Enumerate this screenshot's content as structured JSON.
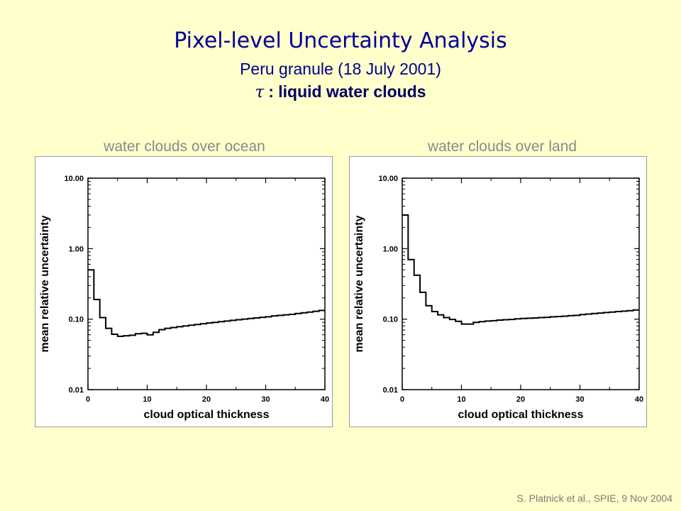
{
  "header": {
    "title": "Pixel-level Uncertainty Analysis",
    "subtitle": "Peru granule (18 July 2001)",
    "subtitle2_symbol": "τ",
    "subtitle2_text": ": liquid water clouds"
  },
  "panels": {
    "left_label": "water clouds over ocean",
    "right_label": "water clouds over land"
  },
  "footer": "S. Platnick et al., SPIE, 9 Nov 2004",
  "colors": {
    "background": "#ffffcc",
    "title": "#000099",
    "line": "#000000"
  },
  "chart_data": [
    {
      "type": "line",
      "step": true,
      "title": "",
      "xlabel": "cloud optical thickness",
      "ylabel": "mean relative uncertainty",
      "xlim": [
        0,
        40
      ],
      "ylim": [
        0.01,
        10
      ],
      "yscale": "log",
      "xticks": [
        0,
        10,
        20,
        30,
        40
      ],
      "xtick_labels": [
        "0",
        "10",
        "20",
        "30",
        "40"
      ],
      "yticks": [
        0.01,
        0.1,
        1,
        10
      ],
      "ytick_labels": [
        "0.01",
        "0.10",
        "1.00",
        "10.00"
      ],
      "x": [
        0,
        1,
        2,
        3,
        4,
        5,
        6,
        7,
        8,
        9,
        10,
        11,
        12,
        13,
        14,
        15,
        16,
        17,
        18,
        19,
        20,
        21,
        22,
        23,
        24,
        25,
        26,
        27,
        28,
        29,
        30,
        31,
        32,
        33,
        34,
        35,
        36,
        37,
        38,
        39
      ],
      "values": [
        0.5,
        0.19,
        0.105,
        0.074,
        0.061,
        0.057,
        0.058,
        0.059,
        0.062,
        0.063,
        0.06,
        0.065,
        0.071,
        0.074,
        0.076,
        0.078,
        0.08,
        0.082,
        0.084,
        0.086,
        0.088,
        0.09,
        0.092,
        0.094,
        0.096,
        0.098,
        0.1,
        0.102,
        0.104,
        0.106,
        0.108,
        0.111,
        0.113,
        0.115,
        0.117,
        0.12,
        0.123,
        0.126,
        0.129,
        0.133
      ]
    },
    {
      "type": "line",
      "step": true,
      "title": "",
      "xlabel": "cloud optical thickness",
      "ylabel": "mean relative uncertainty",
      "xlim": [
        0,
        40
      ],
      "ylim": [
        0.01,
        10
      ],
      "yscale": "log",
      "xticks": [
        0,
        10,
        20,
        30,
        40
      ],
      "xtick_labels": [
        "0",
        "10",
        "20",
        "30",
        "40"
      ],
      "yticks": [
        0.01,
        0.1,
        1,
        10
      ],
      "ytick_labels": [
        "0.01",
        "0.10",
        "1.00",
        "10.00"
      ],
      "x": [
        0,
        1,
        2,
        3,
        4,
        5,
        6,
        7,
        8,
        9,
        10,
        11,
        12,
        13,
        14,
        15,
        16,
        17,
        18,
        19,
        20,
        21,
        22,
        23,
        24,
        25,
        26,
        27,
        28,
        29,
        30,
        31,
        32,
        33,
        34,
        35,
        36,
        37,
        38,
        39
      ],
      "values": [
        3.0,
        0.7,
        0.42,
        0.24,
        0.155,
        0.128,
        0.115,
        0.105,
        0.099,
        0.093,
        0.085,
        0.085,
        0.09,
        0.092,
        0.094,
        0.095,
        0.097,
        0.098,
        0.099,
        0.101,
        0.102,
        0.103,
        0.104,
        0.105,
        0.106,
        0.108,
        0.109,
        0.11,
        0.112,
        0.113,
        0.116,
        0.118,
        0.12,
        0.122,
        0.124,
        0.126,
        0.128,
        0.13,
        0.132,
        0.135
      ]
    }
  ]
}
